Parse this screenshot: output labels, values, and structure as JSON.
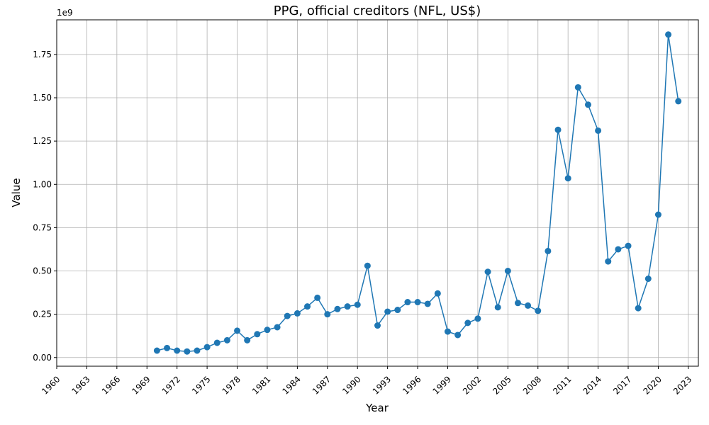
{
  "chart_data": {
    "type": "line",
    "title": "PPG, official creditors (NFL, US$)",
    "xlabel": "Year",
    "ylabel": "Value",
    "y_offset_label": "1e9",
    "xlim": [
      1960,
      2024
    ],
    "ylim": [
      -50000000,
      1950000000
    ],
    "x_ticks": [
      1960,
      1963,
      1966,
      1969,
      1972,
      1975,
      1978,
      1981,
      1984,
      1987,
      1990,
      1993,
      1996,
      1999,
      2002,
      2005,
      2008,
      2011,
      2014,
      2017,
      2020,
      2023
    ],
    "y_ticks": [
      0,
      250000000,
      500000000,
      750000000,
      1000000000,
      1250000000,
      1500000000,
      1750000000
    ],
    "y_tick_labels": [
      "0.00",
      "0.25",
      "0.50",
      "0.75",
      "1.00",
      "1.25",
      "1.50",
      "1.75"
    ],
    "grid": true,
    "color": "#1f77b4",
    "series": [
      {
        "x": [
          1970,
          1971,
          1972,
          1973,
          1974,
          1975,
          1976,
          1977,
          1978,
          1979,
          1980,
          1981,
          1982,
          1983,
          1984,
          1985,
          1986,
          1987,
          1988,
          1989,
          1990,
          1991,
          1992,
          1993,
          1994,
          1995,
          1996,
          1997,
          1998,
          1999,
          2000,
          2001,
          2002,
          2003,
          2004,
          2005,
          2006,
          2007,
          2008,
          2009,
          2010,
          2011,
          2012,
          2013,
          2014,
          2015,
          2016,
          2017,
          2018,
          2019,
          2020,
          2021,
          2022
        ],
        "values": [
          40000000,
          55000000,
          40000000,
          35000000,
          40000000,
          60000000,
          85000000,
          100000000,
          155000000,
          100000000,
          135000000,
          160000000,
          175000000,
          240000000,
          255000000,
          295000000,
          345000000,
          250000000,
          280000000,
          295000000,
          305000000,
          530000000,
          185000000,
          265000000,
          275000000,
          320000000,
          320000000,
          310000000,
          370000000,
          150000000,
          130000000,
          200000000,
          225000000,
          495000000,
          290000000,
          500000000,
          315000000,
          300000000,
          270000000,
          615000000,
          1315000000,
          1035000000,
          1560000000,
          1460000000,
          1310000000,
          555000000,
          625000000,
          645000000,
          285000000,
          455000000,
          825000000,
          1865000000,
          1480000000
        ]
      }
    ]
  }
}
